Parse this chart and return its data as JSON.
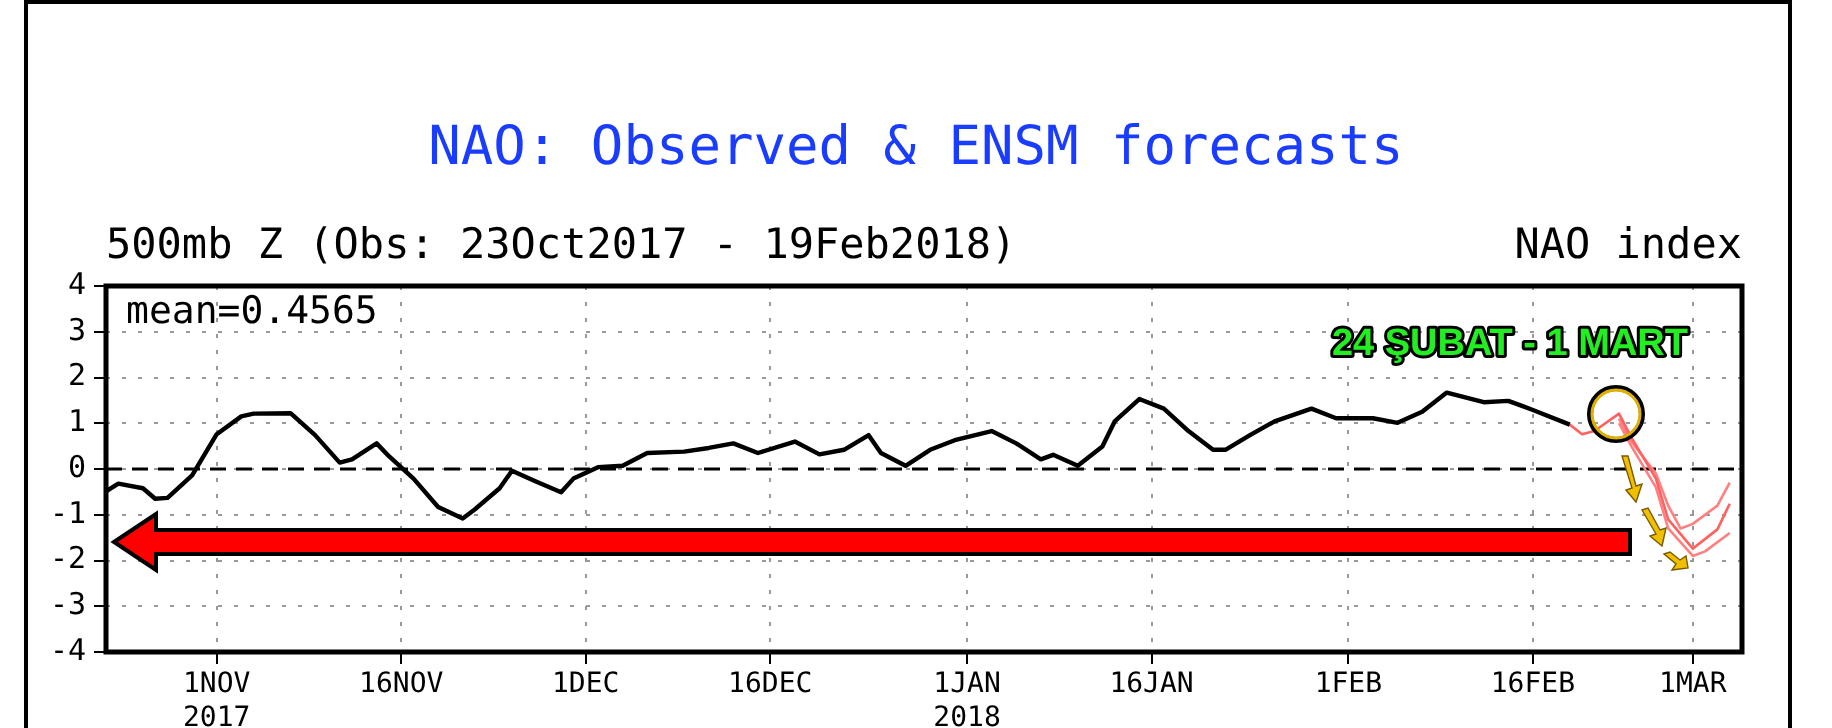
{
  "chart_data": {
    "type": "line",
    "title": "NAO: Observed & ENSM forecasts",
    "subtitle": "500mb Z (Obs: 23Oct2017 - 19Feb2018)",
    "ylabel": "NAO index",
    "annotations": [
      "mean=0.4565",
      "24 ŞUBAT - 1 MART"
    ],
    "series": [
      {
        "color": "#000000",
        "x": [
          "2017-10-23",
          "2017-10-24",
          "2017-10-26",
          "2017-10-27",
          "2017-10-28",
          "2017-10-30",
          "2017-11-01",
          "2017-11-03",
          "2017-11-04",
          "2017-11-07",
          "2017-11-09",
          "2017-11-11",
          "2017-11-12",
          "2017-11-14",
          "2017-11-15",
          "2017-11-17",
          "2017-11-19",
          "2017-11-21",
          "2017-11-22",
          "2017-11-24",
          "2017-11-25",
          "2017-11-27",
          "2017-11-29",
          "2017-11-30",
          "2017-12-02",
          "2017-12-04",
          "2017-12-06",
          "2017-12-09",
          "2017-12-11",
          "2017-12-13",
          "2017-12-15",
          "2017-12-18",
          "2017-12-20",
          "2017-12-22",
          "2017-12-24",
          "2017-12-25",
          "2017-12-27",
          "2017-12-29",
          "2017-12-31",
          "2018-01-03",
          "2018-01-05",
          "2018-01-07",
          "2018-01-08",
          "2018-01-10",
          "2018-01-12",
          "2018-01-13",
          "2018-01-15",
          "2018-01-17",
          "2018-01-19",
          "2018-01-21",
          "2018-01-22",
          "2018-01-24",
          "2018-01-26",
          "2018-01-29",
          "2018-01-31",
          "2018-02-03",
          "2018-02-05",
          "2018-02-07",
          "2018-02-09",
          "2018-02-12",
          "2018-02-14",
          "2018-02-16",
          "2018-02-19"
        ],
        "values": [
          -0.49,
          -0.32,
          -0.42,
          -0.65,
          -0.63,
          -0.14,
          0.76,
          1.15,
          1.21,
          1.22,
          0.74,
          0.14,
          0.21,
          0.56,
          0.28,
          -0.21,
          -0.83,
          -1.08,
          -0.88,
          -0.42,
          -0.04,
          -0.28,
          -0.51,
          -0.21,
          0.04,
          0.07,
          0.35,
          0.38,
          0.46,
          0.56,
          0.35,
          0.6,
          0.32,
          0.42,
          0.74,
          0.35,
          0.07,
          0.42,
          0.63,
          0.83,
          0.56,
          0.21,
          0.31,
          0.07,
          0.49,
          1.04,
          1.53,
          1.32,
          0.83,
          0.42,
          0.42,
          0.74,
          1.04,
          1.32,
          1.11,
          1.11,
          1.01,
          1.25,
          1.67,
          1.46,
          1.49,
          1.29,
          0.97
        ]
      },
      {
        "color": "#ff6060",
        "x": [
          "2018-02-19",
          "2018-02-20",
          "2018-02-21",
          "2018-02-23",
          "2018-02-24",
          "2018-02-26",
          "2018-02-27",
          "2018-03-01",
          "2018-03-03",
          "2018-03-04"
        ],
        "values": [
          0.97,
          0.76,
          0.83,
          1.21,
          0.69,
          -0.21,
          -1.1,
          -1.74,
          -1.32,
          -0.76
        ]
      },
      {
        "color": "#ff8080",
        "x": [
          "2018-02-23",
          "2018-02-24",
          "2018-02-26",
          "2018-02-27",
          "2018-02-28",
          "2018-03-01",
          "2018-03-03",
          "2018-03-04"
        ],
        "values": [
          1.1,
          0.6,
          -0.1,
          -0.8,
          -1.3,
          -1.2,
          -0.8,
          -0.3
        ]
      },
      {
        "color": "#ff8080",
        "x": [
          "2018-02-23",
          "2018-02-24",
          "2018-02-26",
          "2018-02-27",
          "2018-03-01",
          "2018-03-02",
          "2018-03-04"
        ],
        "values": [
          1.0,
          0.5,
          -0.4,
          -1.3,
          -1.9,
          -1.8,
          -1.4
        ]
      }
    ],
    "xlim": [
      "2017-10-23",
      "2018-03-05"
    ],
    "xticks": [
      {
        "value": "2017-11-01",
        "label": "1NOV\n2017"
      },
      {
        "value": "2017-11-16",
        "label": "16NOV"
      },
      {
        "value": "2017-12-01",
        "label": "1DEC"
      },
      {
        "value": "2017-12-16",
        "label": "16DEC"
      },
      {
        "value": "2018-01-01",
        "label": "1JAN\n2018"
      },
      {
        "value": "2018-01-16",
        "label": "16JAN"
      },
      {
        "value": "2018-02-01",
        "label": "1FEB"
      },
      {
        "value": "2018-02-16",
        "label": "16FEB"
      },
      {
        "value": "2018-03-01",
        "label": "1MAR"
      }
    ],
    "ylim": [
      -4,
      4
    ],
    "yticks": [
      -4,
      -3,
      -2,
      -1,
      0,
      1,
      2,
      3,
      4
    ],
    "ref_lines": [
      {
        "axis": "y",
        "value": 0,
        "line_style": "dashed",
        "color": "#000000"
      }
    ],
    "grid": true,
    "legend": false,
    "marker": "none",
    "line_style": "solid"
  }
}
